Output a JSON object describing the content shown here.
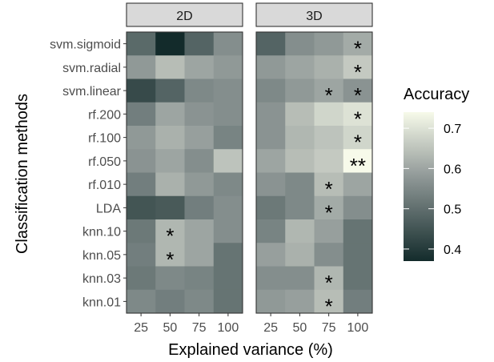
{
  "chart_data": {
    "type": "heatmap",
    "xlabel": "Explained variance (%)",
    "ylabel": "Classification methods",
    "x_categories": [
      "25",
      "50",
      "75",
      "100"
    ],
    "y_categories": [
      "svm.sigmoid",
      "svm.radial",
      "svm.linear",
      "rf.200",
      "rf.100",
      "rf.050",
      "rf.010",
      "LDA",
      "knn.10",
      "knn.05",
      "knn.03",
      "knn.01"
    ],
    "legend": {
      "title": "Accuracy",
      "ticks": [
        "0.4",
        "0.5",
        "0.6",
        "0.7"
      ],
      "tick_values": [
        0.4,
        0.5,
        0.6,
        0.7
      ],
      "range": [
        0.37,
        0.74
      ],
      "low_color": "#132b2b",
      "mid_color": "#8c9594",
      "high_color": "#f7faea",
      "placement": "right"
    },
    "panels": [
      {
        "name": "2D",
        "values": [
          [
            0.49,
            0.37,
            0.48,
            0.56
          ],
          [
            0.58,
            0.64,
            0.6,
            0.58
          ],
          [
            0.43,
            0.48,
            0.55,
            0.56
          ],
          [
            0.53,
            0.6,
            0.57,
            0.56
          ],
          [
            0.58,
            0.62,
            0.59,
            0.54
          ],
          [
            0.57,
            0.6,
            0.56,
            0.65
          ],
          [
            0.53,
            0.62,
            0.58,
            0.55
          ],
          [
            0.45,
            0.46,
            0.53,
            0.56
          ],
          [
            0.52,
            0.63,
            0.6,
            0.56
          ],
          [
            0.53,
            0.63,
            0.6,
            0.51
          ],
          [
            0.52,
            0.55,
            0.54,
            0.51
          ],
          [
            0.55,
            0.53,
            0.55,
            0.51
          ]
        ],
        "stars": [
          [
            "",
            "",
            "",
            ""
          ],
          [
            "",
            "",
            "",
            ""
          ],
          [
            "",
            "",
            "",
            ""
          ],
          [
            "",
            "",
            "",
            ""
          ],
          [
            "",
            "",
            "",
            ""
          ],
          [
            "",
            "",
            "",
            ""
          ],
          [
            "",
            "",
            "",
            ""
          ],
          [
            "",
            "",
            "",
            ""
          ],
          [
            "",
            "*",
            "",
            ""
          ],
          [
            "",
            "*",
            "",
            ""
          ],
          [
            "",
            "",
            "",
            ""
          ],
          [
            "",
            "",
            "",
            ""
          ]
        ]
      },
      {
        "name": "3D",
        "values": [
          [
            0.48,
            0.56,
            0.58,
            0.61
          ],
          [
            0.58,
            0.6,
            0.62,
            0.66
          ],
          [
            0.55,
            0.58,
            0.6,
            0.57
          ],
          [
            0.57,
            0.64,
            0.68,
            0.7
          ],
          [
            0.57,
            0.63,
            0.65,
            0.68
          ],
          [
            0.6,
            0.64,
            0.66,
            0.74
          ],
          [
            0.57,
            0.55,
            0.64,
            0.6
          ],
          [
            0.52,
            0.55,
            0.61,
            0.56
          ],
          [
            0.54,
            0.63,
            0.59,
            0.51
          ],
          [
            0.59,
            0.62,
            0.56,
            0.51
          ],
          [
            0.56,
            0.56,
            0.63,
            0.51
          ],
          [
            0.58,
            0.59,
            0.64,
            0.53
          ]
        ],
        "stars": [
          [
            "",
            "",
            "",
            "*"
          ],
          [
            "",
            "",
            "",
            "*"
          ],
          [
            "",
            "",
            "*",
            "*"
          ],
          [
            "",
            "",
            "",
            "*"
          ],
          [
            "",
            "",
            "",
            "*"
          ],
          [
            "",
            "",
            "",
            "**"
          ],
          [
            "",
            "",
            "*",
            ""
          ],
          [
            "",
            "",
            "*",
            ""
          ],
          [
            "",
            "",
            "",
            ""
          ],
          [
            "",
            "",
            "",
            ""
          ],
          [
            "",
            "",
            "*",
            ""
          ],
          [
            "",
            "",
            "*",
            ""
          ]
        ]
      }
    ]
  }
}
